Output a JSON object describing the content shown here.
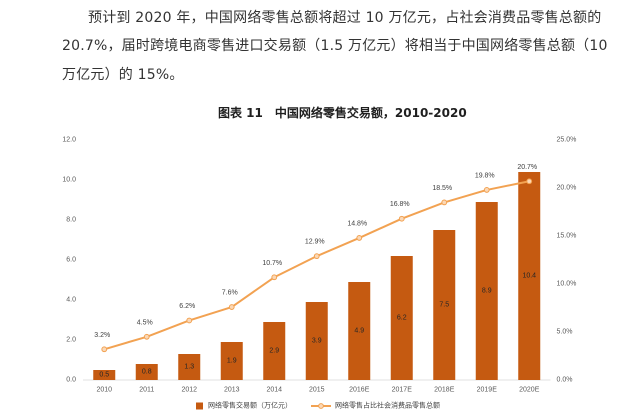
{
  "intro": {
    "lines": [
      "预计到 2020 年，中国网络零售总额将超过 10 万亿元，占社会消费品零售总额的",
      "20.7%，届时跨境电商零售进口交易额（1.5 万亿元）将相当于中国网络零售总额（10",
      "万亿元）的 15%。"
    ]
  },
  "chart_data": {
    "type": "bar",
    "figure_label": "图表 11",
    "title": "中国网络零售交易额，2010-2020",
    "categories": [
      "2010",
      "2011",
      "2012",
      "2013",
      "2014",
      "2015",
      "2016E",
      "2017E",
      "2018E",
      "2019E",
      "2020E"
    ],
    "series": [
      {
        "name": "网络零售交易额（万亿元）",
        "type": "bar",
        "axis": "left",
        "color": "#C55A11",
        "values": [
          0.5,
          0.8,
          1.3,
          1.9,
          2.9,
          3.9,
          4.9,
          6.2,
          7.5,
          8.9,
          10.4
        ],
        "labels": [
          "0.5",
          "0.8",
          "1.3",
          "1.9",
          "2.9",
          "3.9",
          "4.9",
          "6.2",
          "7.5",
          "8.9",
          "10.4"
        ]
      },
      {
        "name": "网络零售占比社会消费品零售总额",
        "type": "line",
        "axis": "right",
        "color": "#F2A252",
        "marker_color": "#FBD8B6",
        "values": [
          3.2,
          4.5,
          6.2,
          7.6,
          10.7,
          12.9,
          14.8,
          16.8,
          18.5,
          19.8,
          20.7
        ],
        "labels": [
          "3.2%",
          "4.5%",
          "6.2%",
          "7.6%",
          "10.7%",
          "12.9%",
          "14.8%",
          "16.8%",
          "18.5%",
          "19.8%",
          "20.7%"
        ]
      }
    ],
    "y_left": {
      "ylim": [
        0,
        12
      ],
      "tick_labels": [
        "0.0",
        "2.0",
        "4.0",
        "6.0",
        "8.0",
        "10.0",
        "12.0"
      ]
    },
    "y_right": {
      "ylim": [
        0,
        25
      ],
      "tick_labels": [
        "0.0%",
        "5.0%",
        "10.0%",
        "15.0%",
        "20.0%",
        "25.0%"
      ]
    },
    "grid": false,
    "legend": "bottom-center"
  }
}
